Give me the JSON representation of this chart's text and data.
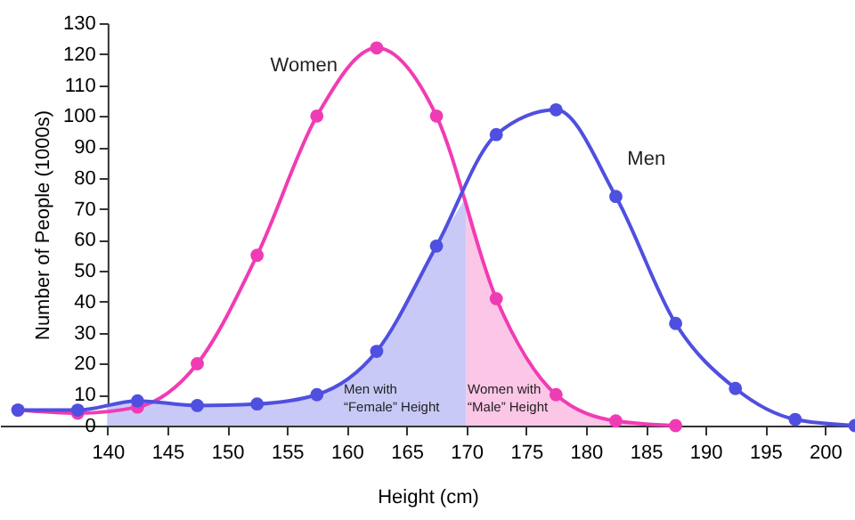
{
  "chart_data": {
    "type": "line",
    "xlabel": "Height (cm)",
    "ylabel": "Number of People (1000s)",
    "xlim": [
      131,
      202.5
    ],
    "ylim": [
      0,
      130
    ],
    "xticks": [
      140,
      145,
      150,
      155,
      160,
      165,
      170,
      175,
      180,
      185,
      190,
      195,
      200
    ],
    "yticks": [
      0,
      10,
      20,
      30,
      40,
      50,
      60,
      70,
      80,
      90,
      100,
      110,
      120,
      130
    ],
    "grid": false,
    "marker": "circle",
    "line_style": "solid",
    "series": [
      {
        "type": "area",
        "color": "#c9c9f7",
        "marker": "none",
        "x": [
          140,
          142.5,
          147.5,
          152.5,
          157.5,
          162.5,
          167.5,
          170
        ],
        "values": [
          6,
          8,
          6.5,
          7,
          10,
          24,
          58,
          74
        ]
      },
      {
        "type": "area",
        "color": "#fcc6e6",
        "marker": "none",
        "x": [
          170,
          172.5,
          177.5,
          182.5,
          187.5
        ],
        "values": [
          74,
          41,
          10,
          1.5,
          0
        ]
      },
      {
        "name": "Women",
        "color": "#f03cb4",
        "x": [
          132.5,
          137.5,
          142.5,
          147.5,
          152.5,
          157.5,
          162.5,
          167.5,
          172.5,
          177.5,
          182.5,
          187.5
        ],
        "values": [
          5,
          4,
          6,
          20,
          55,
          100,
          122,
          100,
          41,
          10,
          1.5,
          0
        ]
      },
      {
        "name": "Men",
        "color": "#4f4fe0",
        "x": [
          132.5,
          137.5,
          142.5,
          147.5,
          152.5,
          157.5,
          162.5,
          167.5,
          172.5,
          177.5,
          182.5,
          187.5,
          192.5,
          197.5,
          202.5
        ],
        "values": [
          5,
          5,
          8,
          6.5,
          7,
          10,
          24,
          58,
          94,
          102,
          74,
          33,
          12,
          2,
          0
        ]
      }
    ],
    "annotations": [
      "Men with\n“Female” Height",
      "Women with\n“Male” Height"
    ]
  }
}
